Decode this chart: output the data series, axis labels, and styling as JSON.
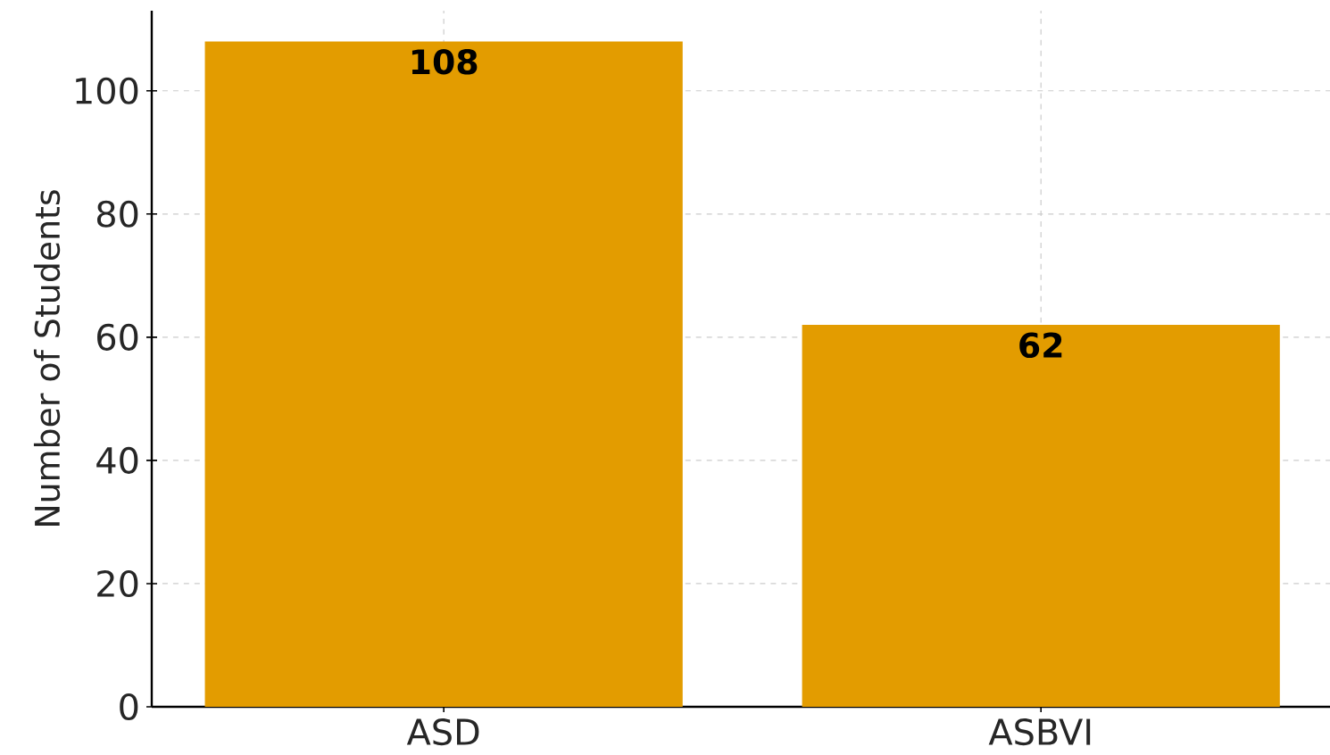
{
  "chart_data": {
    "type": "bar",
    "ylabel": "Number of Students",
    "categories": [
      "ASD",
      "ASBVI"
    ],
    "values": [
      108,
      62
    ],
    "color": "#e39c00",
    "ylim": [
      0,
      113
    ],
    "yticks": [
      0,
      20,
      40,
      60,
      80,
      100
    ],
    "grid": true,
    "data_labels": true
  }
}
